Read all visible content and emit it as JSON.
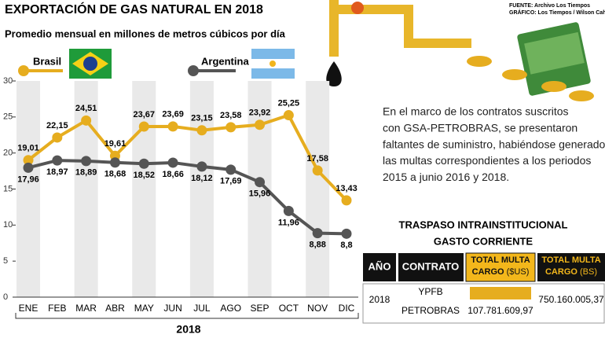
{
  "header": {
    "title": "EXPORTACIÓN DE GAS NATURAL EN 2018",
    "source": [
      "FUENTE: Archivo Los Tiempos",
      "GRÁFICO: Los Tiempos / Wilson Cahuaya"
    ]
  },
  "chart_data": {
    "type": "line",
    "subtitle": "Promedio mensual en millones de metros cúbicos por día",
    "categories": [
      "ENE",
      "FEB",
      "MAR",
      "ABR",
      "MAY",
      "JUN",
      "JUL",
      "AGO",
      "SEP",
      "OCT",
      "NOV",
      "DIC"
    ],
    "x_label": "2018",
    "series": [
      {
        "name": "Brasil",
        "color": "#e6ad1f",
        "values": [
          19.01,
          22.15,
          24.51,
          19.61,
          23.67,
          23.69,
          23.15,
          23.58,
          23.92,
          25.25,
          17.58,
          13.43
        ],
        "value_labels": [
          "19,01",
          "22,15",
          "24,51",
          "19,61",
          "23,67",
          "23,69",
          "23,15",
          "23,58",
          "23,92",
          "25,25",
          "17,58",
          "13,43"
        ]
      },
      {
        "name": "Argentina",
        "color": "#555555",
        "values": [
          17.96,
          18.97,
          18.89,
          18.68,
          18.52,
          18.66,
          18.12,
          17.69,
          15.96,
          11.96,
          8.88,
          8.8
        ],
        "value_labels": [
          "17,96",
          "18,97",
          "18,89",
          "18,68",
          "18,52",
          "18,66",
          "18,12",
          "17,69",
          "15,96",
          "11,96",
          "8,88",
          "8,8"
        ]
      }
    ],
    "ylim": [
      0,
      30
    ],
    "yticks": [
      0,
      5,
      10,
      15,
      20,
      25,
      30
    ],
    "grid": false
  },
  "note": [
    "En el marco de los contratos suscritos",
    "con GSA-PETROBRAS, se presentaron",
    "faltantes de suministro, habiéndose generado",
    "las multas correspondientes a los periodos",
    "2015 a junio 2016 y 2018."
  ],
  "table": {
    "title": [
      "TRASPASO INTRAINSTITUCIONAL",
      "GASTO CORRIENTE"
    ],
    "headers": [
      "AÑO",
      "CONTRATO",
      {
        "main": [
          "TOTAL MULTA",
          "CARGO"
        ],
        "unit": "($US)"
      },
      {
        "main": [
          "TOTAL MULTA",
          "CARGO"
        ],
        "unit": "(BS)"
      }
    ],
    "rows": [
      [
        "2018",
        [
          "YPFB",
          "PETROBRAS"
        ],
        "107.781.609,97",
        "750.160.005,37"
      ]
    ]
  }
}
